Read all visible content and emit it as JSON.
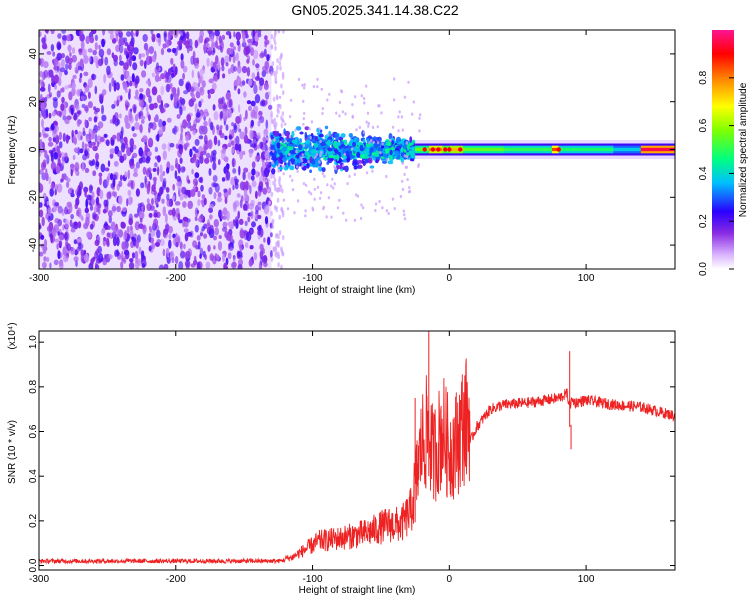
{
  "title": "GN05.2025.341.14.38.C22",
  "chart_data": [
    {
      "type": "heatmap",
      "xlabel": "Height of straight line (km)",
      "ylabel": "Frequency (Hz)",
      "xlim": [
        -300,
        165
      ],
      "ylim": [
        -50,
        50
      ],
      "xticks": [
        "-300",
        "-200",
        "-100",
        "0",
        "100"
      ],
      "yticks": [
        "-40",
        "-20",
        "0",
        "20",
        "40"
      ],
      "colorbar": {
        "label": "Normalized spectral amplitude",
        "range": [
          0,
          1
        ],
        "ticks": [
          "0.0",
          "0.2",
          "0.4",
          "0.6",
          "0.8"
        ]
      },
      "regions": [
        {
          "x_range": [
            -300,
            -130
          ],
          "freq_range": [
            -50,
            50
          ],
          "amplitude": 0.1,
          "pattern": "broadband noise"
        },
        {
          "x_range": [
            -130,
            -25
          ],
          "freq_range": [
            -12,
            12
          ],
          "amplitude": 0.3,
          "pattern": "clustered signal"
        },
        {
          "x_range": [
            -25,
            140
          ],
          "freq_range": [
            -3,
            3
          ],
          "amplitude": 0.5,
          "pattern": "narrow band near 0 Hz"
        },
        {
          "x_range": [
            140,
            165
          ],
          "freq_range": [
            -2,
            2
          ],
          "amplitude": 0.95,
          "pattern": "narrow band near 0 Hz"
        }
      ]
    },
    {
      "type": "line",
      "xlabel": "Height of straight line (km)",
      "ylabel": "SNR (10 * v/v)",
      "multiplier": "(x10⁴)",
      "xlim": [
        -300,
        165
      ],
      "ylim": [
        -0.02,
        1.05
      ],
      "xticks": [
        "-300",
        "-200",
        "-100",
        "0",
        "100"
      ],
      "yticks": [
        "0.0",
        "0.2",
        "0.4",
        "0.6",
        "0.8",
        "1.0"
      ],
      "color": "#ee2222",
      "series": [
        {
          "x": [
            -300,
            -250,
            -200,
            -150,
            -125,
            -115,
            -105,
            -95,
            -80,
            -60,
            -45,
            -35,
            -28,
            -20,
            -15,
            -12,
            -8,
            -5,
            0,
            5,
            10,
            15,
            20,
            30,
            40,
            60,
            80,
            86,
            88,
            90,
            92,
            100,
            120,
            140,
            165
          ],
          "y": [
            0.02,
            0.02,
            0.02,
            0.02,
            0.02,
            0.03,
            0.06,
            0.09,
            0.1,
            0.12,
            0.15,
            0.15,
            0.2,
            0.45,
            0.5,
            0.4,
            0.45,
            0.5,
            0.42,
            0.45,
            0.52,
            0.55,
            0.62,
            0.7,
            0.72,
            0.73,
            0.75,
            0.77,
            0.72,
            0.74,
            0.73,
            0.74,
            0.72,
            0.71,
            0.67
          ]
        }
      ],
      "spikes": [
        {
          "x": -15,
          "y": 1.05
        },
        {
          "x": -25,
          "y": 0.75
        },
        {
          "x": 88,
          "y": 0.96
        },
        {
          "x": 89,
          "y": 0.52
        }
      ]
    }
  ]
}
